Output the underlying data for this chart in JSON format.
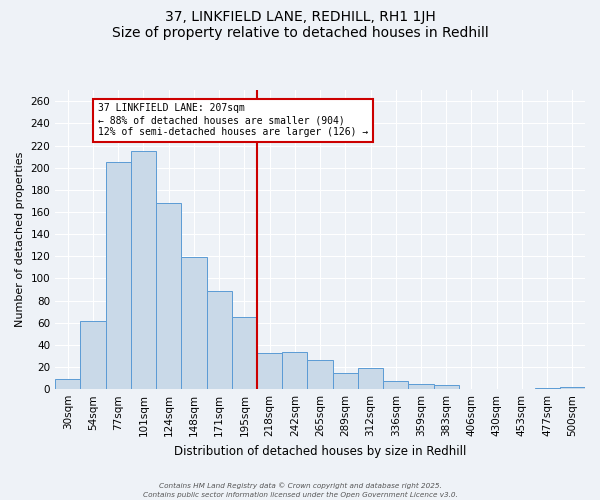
{
  "title": "37, LINKFIELD LANE, REDHILL, RH1 1JH",
  "subtitle": "Size of property relative to detached houses in Redhill",
  "xlabel": "Distribution of detached houses by size in Redhill",
  "ylabel": "Number of detached properties",
  "bar_labels": [
    "30sqm",
    "54sqm",
    "77sqm",
    "101sqm",
    "124sqm",
    "148sqm",
    "171sqm",
    "195sqm",
    "218sqm",
    "242sqm",
    "265sqm",
    "289sqm",
    "312sqm",
    "336sqm",
    "359sqm",
    "383sqm",
    "406sqm",
    "430sqm",
    "453sqm",
    "477sqm",
    "500sqm"
  ],
  "bar_values": [
    9,
    62,
    205,
    215,
    168,
    119,
    89,
    65,
    33,
    34,
    26,
    15,
    19,
    7,
    5,
    4,
    0,
    0,
    0,
    1,
    2
  ],
  "bar_color": "#c9d9e8",
  "bar_edge_color": "#5b9bd5",
  "vline_color": "#cc0000",
  "vline_position": 7.5,
  "annotation_box_edge": "#cc0000",
  "property_label": "37 LINKFIELD LANE: 207sqm",
  "annotation_line1": "← 88% of detached houses are smaller (904)",
  "annotation_line2": "12% of semi-detached houses are larger (126) →",
  "background_color": "#eef2f7",
  "grid_color": "#ffffff",
  "footer1": "Contains HM Land Registry data © Crown copyright and database right 2025.",
  "footer2": "Contains public sector information licensed under the Open Government Licence v3.0.",
  "ylim": [
    0,
    270
  ],
  "yticks": [
    0,
    20,
    40,
    60,
    80,
    100,
    120,
    140,
    160,
    180,
    200,
    220,
    240,
    260
  ],
  "title_fontsize": 10,
  "subtitle_fontsize": 9,
  "ylabel_fontsize": 8,
  "xlabel_fontsize": 8.5,
  "tick_fontsize": 7.5,
  "annot_fontsize": 7
}
